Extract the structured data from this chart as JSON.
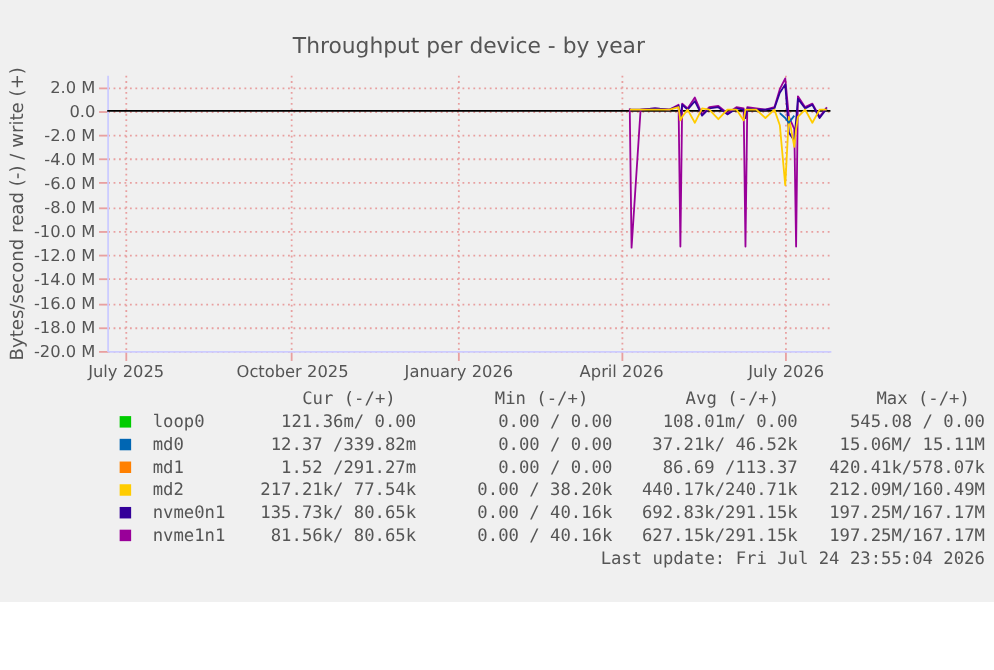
{
  "chart_data": {
    "type": "line",
    "title": "Throughput per device - by year",
    "ylabel": "Bytes/second read (-) / write (+)",
    "x": [
      "2026-04-06",
      "2026-04-07",
      "2026-04-12",
      "2026-04-20",
      "2026-04-28",
      "2026-05-03",
      "2026-05-04",
      "2026-05-05",
      "2026-05-08",
      "2026-05-12",
      "2026-05-16",
      "2026-05-20",
      "2026-05-25",
      "2026-05-30",
      "2026-06-04",
      "2026-06-08",
      "2026-06-09",
      "2026-06-10",
      "2026-06-15",
      "2026-06-20",
      "2026-06-25",
      "2026-06-28",
      "2026-07-01",
      "2026-07-03",
      "2026-07-06",
      "2026-07-07",
      "2026-07-08",
      "2026-07-12",
      "2026-07-16",
      "2026-07-20",
      "2026-07-24"
    ],
    "series": [
      {
        "name": "loop0",
        "color": "#00cc00",
        "values": [
          null,
          null,
          null,
          null,
          null,
          null,
          null,
          null,
          null,
          null,
          null,
          null,
          null,
          null,
          null,
          null,
          null,
          null,
          null,
          null,
          null,
          null,
          null,
          null,
          null,
          null,
          null,
          null,
          null,
          null,
          null
        ]
      },
      {
        "name": "md0",
        "color": "#0066b3",
        "values": [
          null,
          null,
          null,
          null,
          null,
          null,
          null,
          null,
          null,
          null,
          null,
          null,
          null,
          null,
          null,
          null,
          null,
          null,
          null,
          null,
          null,
          -0.2,
          -0.6,
          -1.0,
          -0.4,
          null,
          null,
          null,
          null,
          null,
          null
        ]
      },
      {
        "name": "md1",
        "color": "#ff8000",
        "values": [
          null,
          null,
          null,
          null,
          null,
          null,
          null,
          null,
          null,
          null,
          null,
          null,
          null,
          null,
          null,
          null,
          null,
          null,
          null,
          null,
          null,
          null,
          null,
          null,
          null,
          null,
          null,
          null,
          null,
          null,
          null
        ]
      },
      {
        "name": "md2",
        "color": "#ffcc00",
        "values": [
          0.1,
          0.1,
          0.1,
          0.1,
          0.1,
          0.3,
          -0.8,
          -0.5,
          0.1,
          -1.0,
          0.2,
          0.1,
          -0.7,
          0.1,
          0.1,
          -0.8,
          0.1,
          0.1,
          0.1,
          -0.6,
          0.1,
          -1.2,
          -6.2,
          -0.5,
          -3.0,
          -1.5,
          -0.5,
          0.1,
          -1.0,
          0.1,
          0.1
        ]
      },
      {
        "name": "nvme0n1",
        "color": "#330099",
        "values": [
          0.1,
          0.1,
          0.1,
          0.2,
          0.1,
          0.4,
          -0.5,
          0.5,
          0.1,
          0.8,
          -0.4,
          0.2,
          0.3,
          -0.3,
          0.2,
          0.1,
          -0.6,
          0.2,
          0.1,
          0.1,
          0.2,
          1.5,
          2.2,
          -1.8,
          -2.5,
          -0.8,
          1.0,
          0.2,
          0.5,
          -0.6,
          0.2
        ]
      },
      {
        "name": "nvme1n1",
        "color": "#990099",
        "values": [
          0.2,
          -11.4,
          0.1,
          0.2,
          0.1,
          0.5,
          -11.3,
          0.6,
          0.2,
          1.1,
          -0.3,
          0.3,
          0.4,
          -0.2,
          0.3,
          0.2,
          -11.3,
          0.3,
          0.2,
          0.1,
          0.3,
          1.8,
          2.7,
          -0.5,
          -1.5,
          -11.3,
          1.2,
          0.3,
          0.6,
          -0.5,
          0.3
        ]
      }
    ],
    "xlim": [
      "2025-06-21",
      "2026-07-26"
    ],
    "xticks": [
      {
        "value": "2025-07-01",
        "label": "July 2025"
      },
      {
        "value": "2025-10-01",
        "label": "October 2025"
      },
      {
        "value": "2026-01-01",
        "label": "January 2026"
      },
      {
        "value": "2026-04-01",
        "label": "April 2026"
      },
      {
        "value": "2026-07-01",
        "label": "July 2026"
      }
    ],
    "ylim": [
      -20,
      3
    ],
    "yticks": [
      {
        "value": 2,
        "label": "2.0 M"
      },
      {
        "value": 0,
        "label": "0.0"
      },
      {
        "value": -2,
        "label": "-2.0 M"
      },
      {
        "value": -4,
        "label": "-4.0 M"
      },
      {
        "value": -6,
        "label": "-6.0 M"
      },
      {
        "value": -8,
        "label": "-8.0 M"
      },
      {
        "value": -10,
        "label": "-10.0 M"
      },
      {
        "value": -12,
        "label": "-12.0 M"
      },
      {
        "value": -14,
        "label": "-14.0 M"
      },
      {
        "value": -16,
        "label": "-16.0 M"
      },
      {
        "value": -18,
        "label": "-18.0 M"
      },
      {
        "value": -20,
        "label": "-20.0 M"
      }
    ],
    "ref_lines": [
      {
        "axis": "y",
        "value": 0,
        "color": "#000000"
      }
    ],
    "grid": true,
    "legend": "bottom",
    "annotations": [
      "Cur (-/+)",
      "Min (-/+)",
      "Avg (-/+)",
      "Max (-/+)",
      "121.36m/  0.00",
      "0.00 /  0.00",
      "108.01m/  0.00",
      "545.08 /  0.00",
      "12.37 /339.82m",
      "0.00 /  0.00",
      "37.21k/ 46.52k",
      "15.06M/ 15.11M",
      "1.52 /291.27m",
      "0.00 /  0.00",
      "86.69 /113.37",
      "420.41k/578.07k",
      "217.21k/ 77.54k",
      "0.00 / 38.20k",
      "440.17k/240.71k",
      "212.09M/160.49M",
      "135.73k/ 80.65k",
      "0.00 / 40.16k",
      "692.83k/291.15k",
      "197.25M/167.17M",
      "81.56k/ 80.65k",
      "0.00 / 40.16k",
      "627.15k/291.15k",
      "197.25M/167.17M",
      "Last update: Fri Jul 24 23:55:04 2026"
    ]
  }
}
